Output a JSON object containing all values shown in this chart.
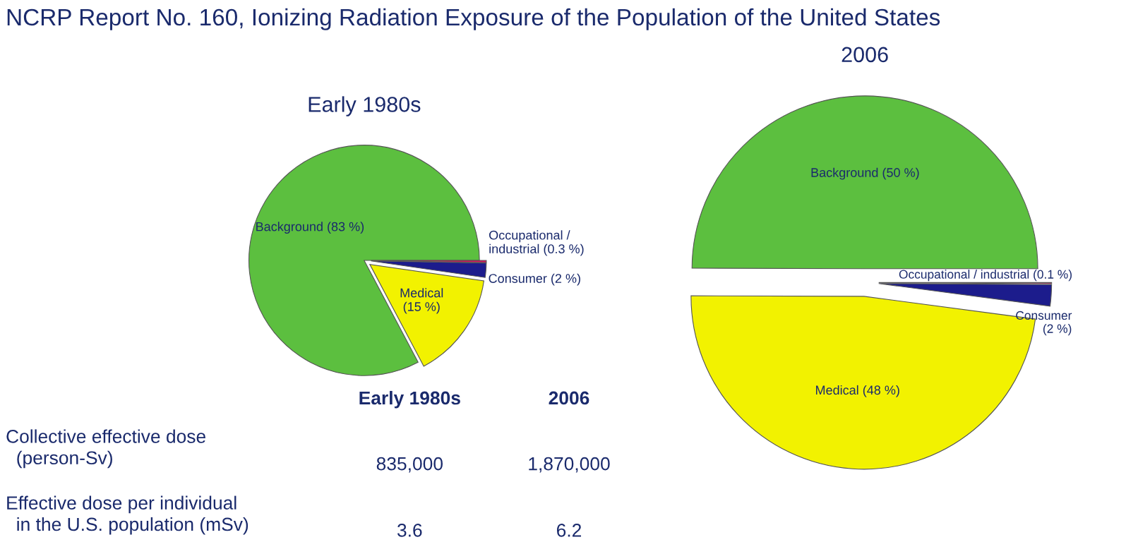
{
  "chart_data": [
    {
      "type": "pie",
      "title": "Early 1980s",
      "categories": [
        "Background (83 %)",
        "Medical\n(15 %)",
        "Consumer (2 %)",
        "Occupational /\nindustrial (0.3 %)"
      ],
      "values": [
        83,
        15,
        2,
        0.3
      ],
      "colors": [
        "#5cbf3f",
        "#f2f200",
        "#1c1c8c",
        "#d4145a"
      ]
    },
    {
      "type": "pie",
      "title": "2006",
      "categories": [
        "Background (50 %)",
        "Medical (48 %)",
        "Consumer\n(2 %)",
        "Occupational / industrial (0.1 %)"
      ],
      "values": [
        50,
        48,
        2,
        0.1
      ],
      "colors": [
        "#5cbf3f",
        "#f2f200",
        "#1c1c8c",
        "#d4145a"
      ]
    },
    {
      "type": "other",
      "title": "NCRP Report No. 160, Ionizing Radiation Exposure of the Population of the United States",
      "annotations": [
        "Early 1980s",
        "2006",
        "Collective effective dose\n  (person-Sv)",
        "835,000",
        "1,870,000",
        "Effective dose per individual\n  in the U.S. population (mSv)",
        "3.6",
        "6.2"
      ]
    }
  ]
}
